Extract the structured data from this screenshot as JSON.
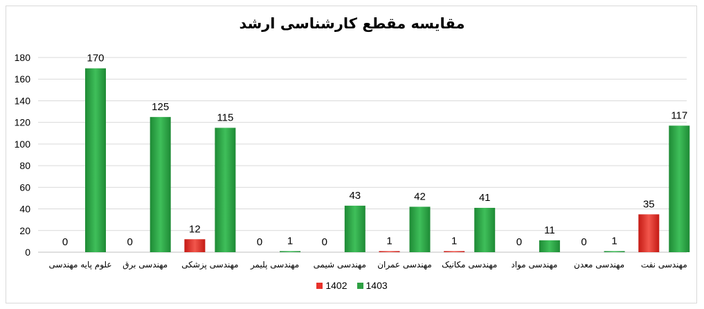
{
  "chart_data": {
    "type": "bar",
    "title": "مقایسه مقطع کارشناسی ارشد",
    "categories": [
      "علوم پایه مهندسی",
      "مهندسی برق",
      "مهندسی پزشکی",
      "مهندسی پلیمر",
      "مهندسی شیمی",
      "مهندسی عمران",
      "مهندسی مکانیک",
      "مهندسی مواد",
      "مهندسی معدن",
      "مهندسی نفت"
    ],
    "series": [
      {
        "name": "1402",
        "color": "#e8322b",
        "values": [
          0,
          0,
          12,
          0,
          0,
          1,
          1,
          0,
          0,
          35
        ]
      },
      {
        "name": "1403",
        "color": "#2ea043",
        "values": [
          170,
          125,
          115,
          1,
          43,
          42,
          41,
          11,
          1,
          117
        ]
      }
    ],
    "yticks": [
      0,
      20,
      40,
      60,
      80,
      100,
      120,
      140,
      160,
      180
    ],
    "ylim": [
      0,
      180
    ],
    "grid": true,
    "legend": "bottom"
  }
}
